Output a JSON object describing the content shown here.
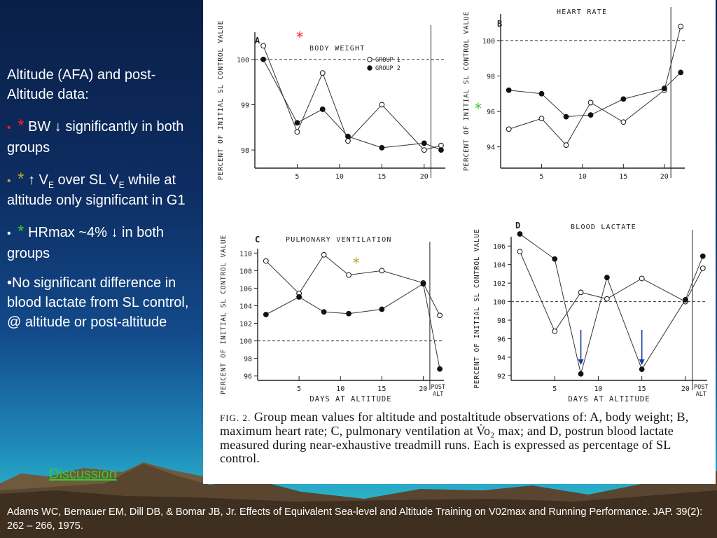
{
  "sidebar": {
    "heading": "Altitude (AFA) and post-Altitude data:",
    "item1_star": "*",
    "item1_text": "BW ↓ significantly in both groups",
    "item2_star": "*",
    "item2_a": "↑ V",
    "item2_sub1": "E",
    "item2_b": " over SL V",
    "item2_sub2": "E",
    "item2_c": " while at altitude only significant in G1",
    "item3_star": "*",
    "item3_text": "HRmax ~4% ↓ in both groups",
    "item4_text": "•No significant difference in blood lactate from SL control, @ altitude or post-altitude"
  },
  "discussion_link": "Discussion",
  "citation": "Adams WC, Bernauer EM, Dill DB, & Bomar JB, Jr. Effects of Equivalent Sea-level and Altitude Training on V02max and Running Performance. JAP. 39(2): 262 – 266, 1975.",
  "caption": {
    "fig": "FIG. 2.",
    "text": "Group mean values for altitude and postaltitude observations of: A, body weight; B, maximum heart rate; C, pulmonary ventilation at V̇o₂ max; and D, postrun blood lactate measured during near-exhaustive treadmill runs. Each is expressed as percentage of SL control."
  },
  "colors": {
    "red_star": "#ff1a1a",
    "green_star": "#33cc33",
    "olive_star": "#b5a52c",
    "link": "#33cc33"
  },
  "chart_data": [
    {
      "type": "line",
      "panel": "A",
      "title": "BODY WEIGHT",
      "ylabel": "PERCENT OF INITIAL SL CONTROL VALUE",
      "x": [
        1,
        5,
        8,
        11,
        15,
        20,
        22
      ],
      "xticks": [
        5,
        10,
        15,
        20
      ],
      "ylim": [
        97.6,
        100.6
      ],
      "yticks": [
        98,
        99,
        100
      ],
      "reference": 100,
      "marker": "*",
      "marker_color": "#ff1a1a",
      "series": [
        {
          "name": "GROUP 1",
          "style": "open",
          "values": [
            100.3,
            98.4,
            99.7,
            98.2,
            99.0,
            98.0,
            98.1
          ]
        },
        {
          "name": "GROUP 2",
          "style": "filled",
          "values": [
            100.0,
            98.6,
            98.9,
            98.3,
            98.05,
            98.15,
            98.0
          ]
        }
      ]
    },
    {
      "type": "line",
      "panel": "B",
      "title": "HEART RATE",
      "ylabel": "PERCENT OF INITIAL SL CONTROL VALUE",
      "x": [
        1,
        5,
        8,
        11,
        15,
        20,
        22
      ],
      "xticks": [
        5,
        10,
        15,
        20
      ],
      "ylim": [
        92.8,
        101.5
      ],
      "yticks": [
        94,
        96,
        98,
        100
      ],
      "reference": 100,
      "marker": "*",
      "marker_color": "#33cc33",
      "series": [
        {
          "name": "GROUP 1",
          "style": "open",
          "values": [
            95.0,
            95.6,
            94.1,
            96.5,
            95.4,
            97.2,
            100.8
          ]
        },
        {
          "name": "GROUP 2",
          "style": "filled",
          "values": [
            97.2,
            97.0,
            95.7,
            95.8,
            96.7,
            97.3,
            98.2
          ]
        }
      ]
    },
    {
      "type": "line",
      "panel": "C",
      "title": "PULMONARY VENTILATION",
      "ylabel": "PERCENT OF INITIAL SL CONTROL VALUE",
      "xlabel": "DAYS AT ALTITUDE",
      "x": [
        1,
        5,
        8,
        11,
        15,
        20,
        22
      ],
      "xticks": [
        5,
        10,
        15,
        20
      ],
      "post_label": [
        "POST",
        "ALT"
      ],
      "ylim": [
        95.5,
        110.5
      ],
      "yticks": [
        96,
        98,
        100,
        102,
        104,
        106,
        108,
        110
      ],
      "reference": 100,
      "marker": "*",
      "marker_color": "#b5a52c",
      "series": [
        {
          "name": "GROUP 1",
          "style": "open",
          "values": [
            109.1,
            105.4,
            109.8,
            107.5,
            108.0,
            106.6,
            102.9
          ]
        },
        {
          "name": "GROUP 2",
          "style": "filled",
          "values": [
            103.0,
            105.0,
            103.3,
            103.1,
            103.6,
            106.5,
            96.8
          ]
        }
      ]
    },
    {
      "type": "line",
      "panel": "D",
      "title": "BLOOD LACTATE",
      "ylabel": "PERCENT OF INITIAL SL CONTROL VALUE",
      "xlabel": "DAYS AT ALTITUDE",
      "x": [
        1,
        5,
        8,
        11,
        15,
        20,
        22
      ],
      "xticks": [
        5,
        10,
        15,
        20
      ],
      "post_label": [
        "POST",
        "ALT"
      ],
      "ylim": [
        91.5,
        107
      ],
      "yticks": [
        92,
        94,
        96,
        98,
        100,
        102,
        104,
        106
      ],
      "reference": 100,
      "arrows_at_x": [
        8,
        15
      ],
      "arrow_color": "#1a3aa0",
      "series": [
        {
          "name": "GROUP 1",
          "style": "open",
          "values": [
            105.4,
            96.8,
            101.0,
            100.3,
            102.5,
            100.0,
            103.6
          ]
        },
        {
          "name": "GROUP 2",
          "style": "filled",
          "values": [
            107.3,
            104.6,
            92.2,
            102.6,
            92.7,
            100.2,
            104.9
          ]
        }
      ]
    }
  ]
}
